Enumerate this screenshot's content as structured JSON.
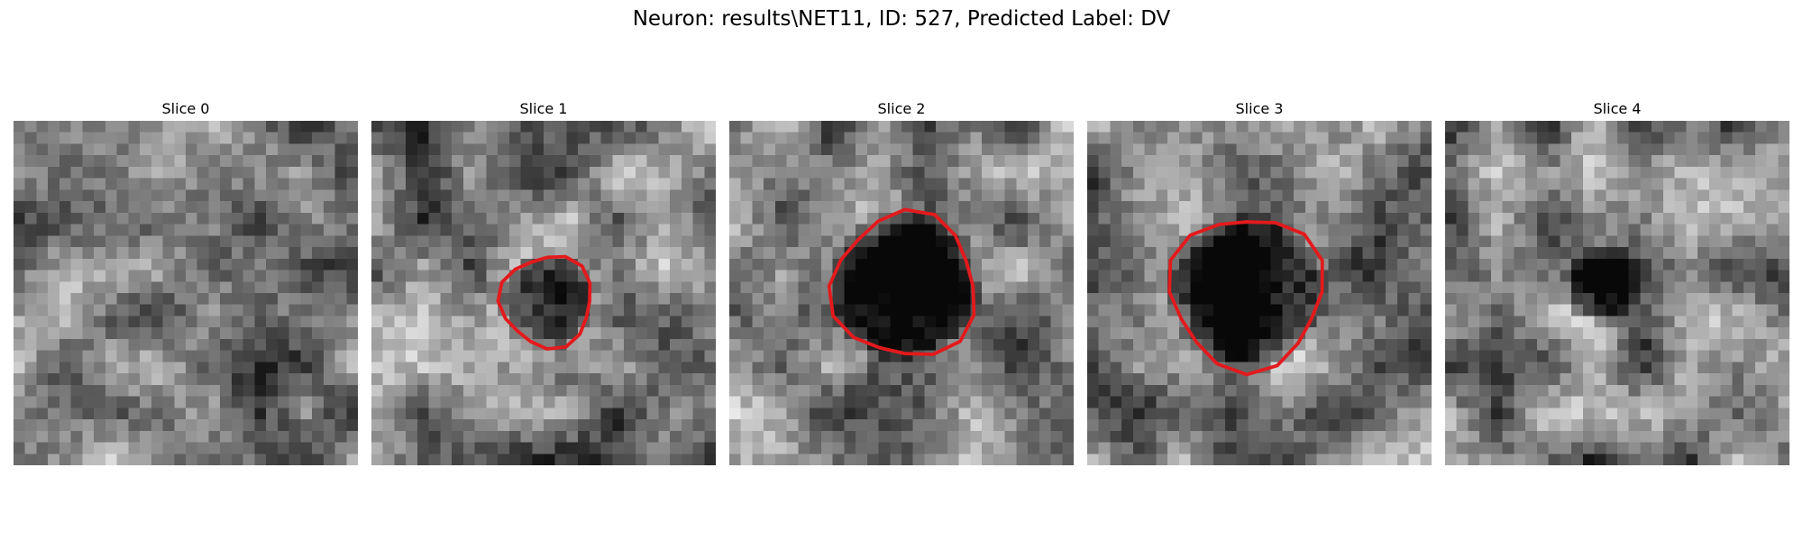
{
  "figure": {
    "title": "Neuron: results\\NET11, ID: 527, Predicted Label: DV"
  },
  "panels": [
    {
      "title": "Slice 0",
      "seed": 11,
      "blob": null,
      "contour": null
    },
    {
      "title": "Slice 1",
      "seed": 23,
      "blob": {
        "cx": 15.3,
        "cy": 15.7,
        "r": 4.2,
        "depth": 0.45
      },
      "contour": "crimson"
    },
    {
      "title": "Slice 2",
      "seed": 37,
      "blob": {
        "cx": 15.3,
        "cy": 14.4,
        "r": 6.6,
        "depth": 0.75
      },
      "contour": "crimson"
    },
    {
      "title": "Slice 3",
      "seed": 41,
      "blob": {
        "cx": 13.9,
        "cy": 14.9,
        "r": 7.0,
        "depth": 0.55
      },
      "contour": "crimson"
    },
    {
      "title": "Slice 4",
      "seed": 53,
      "blob": {
        "cx": 13.8,
        "cy": 14.3,
        "r": 3.4,
        "depth": 0.45
      },
      "contour": null
    }
  ],
  "contour_color": "#e31a1c"
}
